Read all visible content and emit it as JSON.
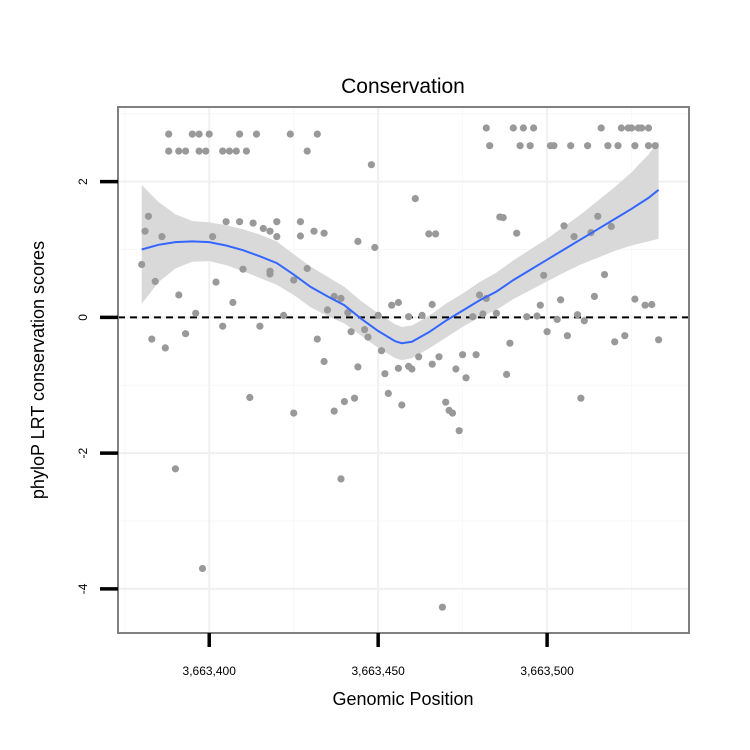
{
  "chart_data": {
    "type": "scatter",
    "title": "Conservation",
    "xlabel": "Genomic Position",
    "ylabel": "phyloP LRT conservation scores",
    "xlim": [
      3663373,
      3663542
    ],
    "ylim": [
      -4.65,
      3.1
    ],
    "grid": true,
    "x_ticks": [
      {
        "value": 3663400,
        "label": "3,663,400"
      },
      {
        "value": 3663450,
        "label": "3,663,450"
      },
      {
        "value": 3663500,
        "label": "3,663,500"
      }
    ],
    "y_ticks": [
      {
        "value": 2,
        "label": "2"
      },
      {
        "value": 0,
        "label": "0"
      },
      {
        "value": -2,
        "label": "-2"
      },
      {
        "value": -4,
        "label": "-4"
      }
    ],
    "reference_line": {
      "y": 0,
      "style": "dashed",
      "color": "#000000"
    },
    "smooth": {
      "color": "#3366ff",
      "band_color": "#d9d9d9",
      "x": [
        3663380,
        3663385,
        3663390,
        3663395,
        3663400,
        3663405,
        3663410,
        3663415,
        3663420,
        3663425,
        3663430,
        3663435,
        3663440,
        3663445,
        3663450,
        3663455,
        3663457,
        3663460,
        3663465,
        3663470,
        3663475,
        3663480,
        3663485,
        3663490,
        3663495,
        3663500,
        3663505,
        3663510,
        3663515,
        3663520,
        3663525,
        3663530,
        3663533
      ],
      "y": [
        1.0,
        1.07,
        1.11,
        1.12,
        1.11,
        1.06,
        0.99,
        0.9,
        0.8,
        0.63,
        0.45,
        0.31,
        0.18,
        -0.02,
        -0.2,
        -0.35,
        -0.38,
        -0.36,
        -0.22,
        -0.05,
        0.1,
        0.25,
        0.38,
        0.55,
        0.7,
        0.85,
        1.0,
        1.15,
        1.3,
        1.45,
        1.6,
        1.76,
        1.88
      ],
      "upper": [
        1.95,
        1.7,
        1.52,
        1.42,
        1.4,
        1.36,
        1.3,
        1.22,
        1.12,
        0.93,
        0.75,
        0.6,
        0.45,
        0.24,
        0.06,
        -0.1,
        -0.14,
        -0.12,
        0.02,
        0.2,
        0.35,
        0.52,
        0.66,
        0.84,
        1.0,
        1.16,
        1.34,
        1.52,
        1.72,
        1.92,
        2.14,
        2.4,
        2.6
      ],
      "lower": [
        0.2,
        0.52,
        0.72,
        0.82,
        0.83,
        0.77,
        0.68,
        0.58,
        0.48,
        0.33,
        0.15,
        0.02,
        -0.09,
        -0.27,
        -0.45,
        -0.6,
        -0.63,
        -0.6,
        -0.46,
        -0.3,
        -0.14,
        0.0,
        0.11,
        0.27,
        0.4,
        0.53,
        0.66,
        0.78,
        0.88,
        0.98,
        1.06,
        1.12,
        1.16
      ]
    },
    "series": [
      {
        "name": "phyloP",
        "color": "#999999",
        "points": [
          [
            3663380,
            0.78
          ],
          [
            3663381,
            1.27
          ],
          [
            3663382,
            1.49
          ],
          [
            3663384,
            0.53
          ],
          [
            3663383,
            -0.32
          ],
          [
            3663386,
            1.19
          ],
          [
            3663387,
            -0.45
          ],
          [
            3663388,
            2.7
          ],
          [
            3663388,
            2.45
          ],
          [
            3663390,
            -2.23
          ],
          [
            3663391,
            0.33
          ],
          [
            3663391,
            2.45
          ],
          [
            3663393,
            2.45
          ],
          [
            3663393,
            -0.24
          ],
          [
            3663395,
            2.7
          ],
          [
            3663396,
            0.06
          ],
          [
            3663397,
            2.7
          ],
          [
            3663397,
            2.45
          ],
          [
            3663398,
            -3.7
          ],
          [
            3663399,
            2.45
          ],
          [
            3663400,
            2.7
          ],
          [
            3663401,
            1.19
          ],
          [
            3663402,
            0.52
          ],
          [
            3663404,
            2.45
          ],
          [
            3663404,
            -0.13
          ],
          [
            3663405,
            1.41
          ],
          [
            3663406,
            2.45
          ],
          [
            3663407,
            0.22
          ],
          [
            3663408,
            2.45
          ],
          [
            3663409,
            2.7
          ],
          [
            3663409,
            1.41
          ],
          [
            3663410,
            0.71
          ],
          [
            3663411,
            2.45
          ],
          [
            3663412,
            -1.18
          ],
          [
            3663413,
            1.39
          ],
          [
            3663414,
            2.7
          ],
          [
            3663415,
            -0.13
          ],
          [
            3663416,
            1.31
          ],
          [
            3663418,
            0.68
          ],
          [
            3663418,
            1.27
          ],
          [
            3663418,
            0.64
          ],
          [
            3663420,
            1.41
          ],
          [
            3663420,
            1.19
          ],
          [
            3663422,
            0.03
          ],
          [
            3663424,
            2.7
          ],
          [
            3663425,
            -1.41
          ],
          [
            3663425,
            0.55
          ],
          [
            3663427,
            1.41
          ],
          [
            3663427,
            1.2
          ],
          [
            3663429,
            0.72
          ],
          [
            3663429,
            2.45
          ],
          [
            3663431,
            1.27
          ],
          [
            3663432,
            2.7
          ],
          [
            3663432,
            -0.32
          ],
          [
            3663434,
            -0.65
          ],
          [
            3663434,
            1.24
          ],
          [
            3663435,
            0.11
          ],
          [
            3663437,
            -1.38
          ],
          [
            3663437,
            0.31
          ],
          [
            3663439,
            -2.38
          ],
          [
            3663439,
            0.28
          ],
          [
            3663440,
            -1.24
          ],
          [
            3663441,
            0.07
          ],
          [
            3663442,
            -0.21
          ],
          [
            3663443,
            -1.19
          ],
          [
            3663444,
            -0.73
          ],
          [
            3663444,
            1.12
          ],
          [
            3663446,
            -0.18
          ],
          [
            3663447,
            -0.29
          ],
          [
            3663448,
            2.25
          ],
          [
            3663449,
            1.03
          ],
          [
            3663450,
            0.03
          ],
          [
            3663451,
            -0.49
          ],
          [
            3663452,
            -0.83
          ],
          [
            3663453,
            -1.12
          ],
          [
            3663454,
            0.18
          ],
          [
            3663456,
            0.22
          ],
          [
            3663456,
            -0.75
          ],
          [
            3663457,
            -1.29
          ],
          [
            3663459,
            0.01
          ],
          [
            3663459,
            -0.72
          ],
          [
            3663460,
            -0.76
          ],
          [
            3663461,
            1.75
          ],
          [
            3663462,
            -0.58
          ],
          [
            3663463,
            0.03
          ],
          [
            3663465,
            1.23
          ],
          [
            3663466,
            0.19
          ],
          [
            3663466,
            -0.69
          ],
          [
            3663467,
            1.23
          ],
          [
            3663468,
            -0.58
          ],
          [
            3663469,
            -4.27
          ],
          [
            3663470,
            -1.25
          ],
          [
            3663471,
            -1.37
          ],
          [
            3663472,
            -1.41
          ],
          [
            3663473,
            -0.76
          ],
          [
            3663474,
            -1.67
          ],
          [
            3663475,
            -0.55
          ],
          [
            3663476,
            -0.89
          ],
          [
            3663478,
            0.01
          ],
          [
            3663479,
            -0.55
          ],
          [
            3663480,
            0.33
          ],
          [
            3663481,
            0.05
          ],
          [
            3663482,
            0.28
          ],
          [
            3663482,
            2.79
          ],
          [
            3663483,
            2.53
          ],
          [
            3663485,
            0.06
          ],
          [
            3663486,
            1.48
          ],
          [
            3663487,
            1.47
          ],
          [
            3663488,
            -0.84
          ],
          [
            3663489,
            -0.38
          ],
          [
            3663490,
            2.79
          ],
          [
            3663491,
            1.24
          ],
          [
            3663492,
            2.53
          ],
          [
            3663493,
            2.79
          ],
          [
            3663494,
            0.01
          ],
          [
            3663495,
            2.53
          ],
          [
            3663496,
            2.79
          ],
          [
            3663497,
            0.02
          ],
          [
            3663498,
            0.18
          ],
          [
            3663499,
            0.62
          ],
          [
            3663500,
            -0.21
          ],
          [
            3663501,
            2.53
          ],
          [
            3663502,
            2.53
          ],
          [
            3663503,
            -0.03
          ],
          [
            3663504,
            0.26
          ],
          [
            3663505,
            1.35
          ],
          [
            3663506,
            -0.27
          ],
          [
            3663507,
            2.53
          ],
          [
            3663508,
            1.19
          ],
          [
            3663509,
            0.04
          ],
          [
            3663510,
            -1.19
          ],
          [
            3663511,
            -0.05
          ],
          [
            3663512,
            2.53
          ],
          [
            3663513,
            1.25
          ],
          [
            3663514,
            0.31
          ],
          [
            3663515,
            1.49
          ],
          [
            3663516,
            2.79
          ],
          [
            3663517,
            0.63
          ],
          [
            3663518,
            2.53
          ],
          [
            3663519,
            1.34
          ],
          [
            3663520,
            -0.36
          ],
          [
            3663521,
            2.53
          ],
          [
            3663522,
            2.79
          ],
          [
            3663523,
            -0.27
          ],
          [
            3663524,
            2.79
          ],
          [
            3663525,
            2.79
          ],
          [
            3663526,
            2.53
          ],
          [
            3663526,
            0.27
          ],
          [
            3663527,
            2.79
          ],
          [
            3663528,
            2.79
          ],
          [
            3663529,
            0.18
          ],
          [
            3663530,
            2.79
          ],
          [
            3663530,
            2.53
          ],
          [
            3663531,
            0.19
          ],
          [
            3663532,
            2.53
          ],
          [
            3663533,
            -0.33
          ]
        ]
      }
    ]
  }
}
